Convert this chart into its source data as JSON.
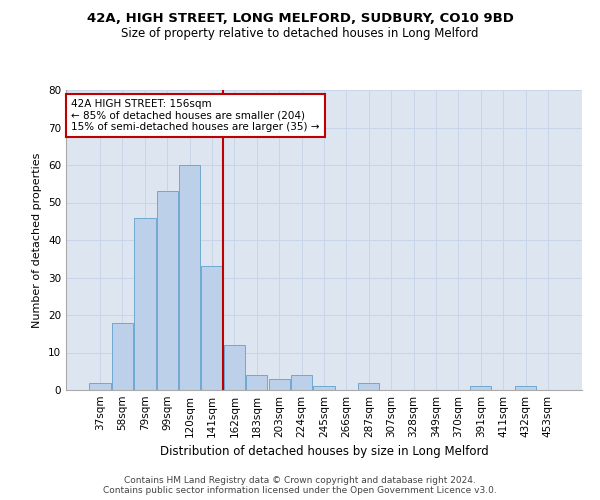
{
  "title1": "42A, HIGH STREET, LONG MELFORD, SUDBURY, CO10 9BD",
  "title2": "Size of property relative to detached houses in Long Melford",
  "xlabel": "Distribution of detached houses by size in Long Melford",
  "ylabel": "Number of detached properties",
  "categories": [
    "37sqm",
    "58sqm",
    "79sqm",
    "99sqm",
    "120sqm",
    "141sqm",
    "162sqm",
    "183sqm",
    "203sqm",
    "224sqm",
    "245sqm",
    "266sqm",
    "287sqm",
    "307sqm",
    "328sqm",
    "349sqm",
    "370sqm",
    "391sqm",
    "411sqm",
    "432sqm",
    "453sqm"
  ],
  "values": [
    2,
    18,
    46,
    53,
    60,
    33,
    12,
    4,
    3,
    4,
    1,
    0,
    2,
    0,
    0,
    0,
    0,
    1,
    0,
    1,
    0
  ],
  "bar_color": "#bdd0e9",
  "bar_edge_color": "#6fa8d0",
  "vline_x": 5.5,
  "vline_color": "#c00000",
  "annotation_line1": "42A HIGH STREET: 156sqm",
  "annotation_line2": "← 85% of detached houses are smaller (204)",
  "annotation_line3": "15% of semi-detached houses are larger (35) →",
  "annotation_box_color": "#ffffff",
  "annotation_box_edge_color": "#c00000",
  "ylim": [
    0,
    80
  ],
  "yticks": [
    0,
    10,
    20,
    30,
    40,
    50,
    60,
    70,
    80
  ],
  "grid_color": "#c8d4e8",
  "bg_color": "#dde5f0",
  "footnote": "Contains HM Land Registry data © Crown copyright and database right 2024.\nContains public sector information licensed under the Open Government Licence v3.0.",
  "title1_fontsize": 9.5,
  "title2_fontsize": 8.5,
  "xlabel_fontsize": 8.5,
  "ylabel_fontsize": 8,
  "tick_fontsize": 7.5,
  "annotation_fontsize": 7.5,
  "footnote_fontsize": 6.5
}
